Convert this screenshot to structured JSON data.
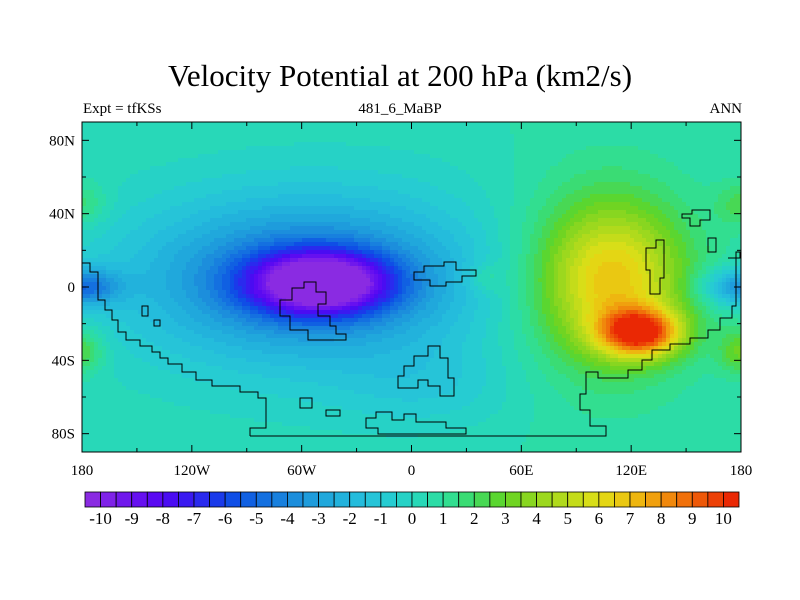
{
  "title": "Velocity Potential at 200 hPa (km2/s)",
  "left_label": "Expt = tfKSs",
  "center_label": "481_6_MaBP",
  "right_label": "ANN",
  "chart_data": {
    "type": "heatmap",
    "title": "Velocity Potential at 200 hPa (km2/s)",
    "variable": "Velocity Potential at 200 hPa",
    "units": "km2/s",
    "x_axis": {
      "range": [
        -180,
        180
      ],
      "ticks": [
        {
          "value": -180,
          "label": "180"
        },
        {
          "value": -120,
          "label": "120W"
        },
        {
          "value": -60,
          "label": "60W"
        },
        {
          "value": 0,
          "label": "0"
        },
        {
          "value": 60,
          "label": "60E"
        },
        {
          "value": 120,
          "label": "120E"
        },
        {
          "value": 180,
          "label": "180"
        }
      ]
    },
    "y_axis": {
      "range": [
        -90,
        90
      ],
      "ticks": [
        {
          "value": 80,
          "label": "80N"
        },
        {
          "value": 40,
          "label": "40N"
        },
        {
          "value": 0,
          "label": "0"
        },
        {
          "value": -40,
          "label": "40S"
        },
        {
          "value": -80,
          "label": "80S"
        }
      ]
    },
    "colorbar": {
      "min": -10.5,
      "max": 10.5,
      "step": 0.5,
      "labels": [
        "-10",
        "-9",
        "-8",
        "-7",
        "-6",
        "-5",
        "-4",
        "-3",
        "-2",
        "-1",
        "0",
        "1",
        "2",
        "3",
        "4",
        "5",
        "6",
        "7",
        "8",
        "9",
        "10"
      ],
      "colors": [
        "#8a2be2",
        "#7f22e8",
        "#7018ec",
        "#6610f0",
        "#5a0af2",
        "#4a0cf2",
        "#3a1af0",
        "#2a2aee",
        "#1a3aea",
        "#0f4ee6",
        "#1060e2",
        "#1470e0",
        "#1880de",
        "#1c8edc",
        "#1e9cdc",
        "#20a8dc",
        "#22b2dc",
        "#24bcdc",
        "#26c4d8",
        "#26ccd2",
        "#26d2c6",
        "#28d8b8",
        "#2cdca6",
        "#32de90",
        "#3adc74",
        "#48d854",
        "#5ad630",
        "#70d422",
        "#88d620",
        "#9cd81e",
        "#b0da1c",
        "#c4dc1a",
        "#d8de18",
        "#e4d614",
        "#eac812",
        "#eeb610",
        "#f0a00e",
        "#f0880c",
        "#f0700a",
        "#ee5808",
        "#ec4006",
        "#ea2804"
      ]
    },
    "field_features": [
      {
        "name": "minimum",
        "lon": -50,
        "lat": 2,
        "value": -8.8
      },
      {
        "name": "maximum",
        "lon": 125,
        "lat": -25,
        "value": 8.6
      },
      {
        "name": "secondary-minimum",
        "lon": 178,
        "lat": 0,
        "value": -0.8
      }
    ]
  }
}
